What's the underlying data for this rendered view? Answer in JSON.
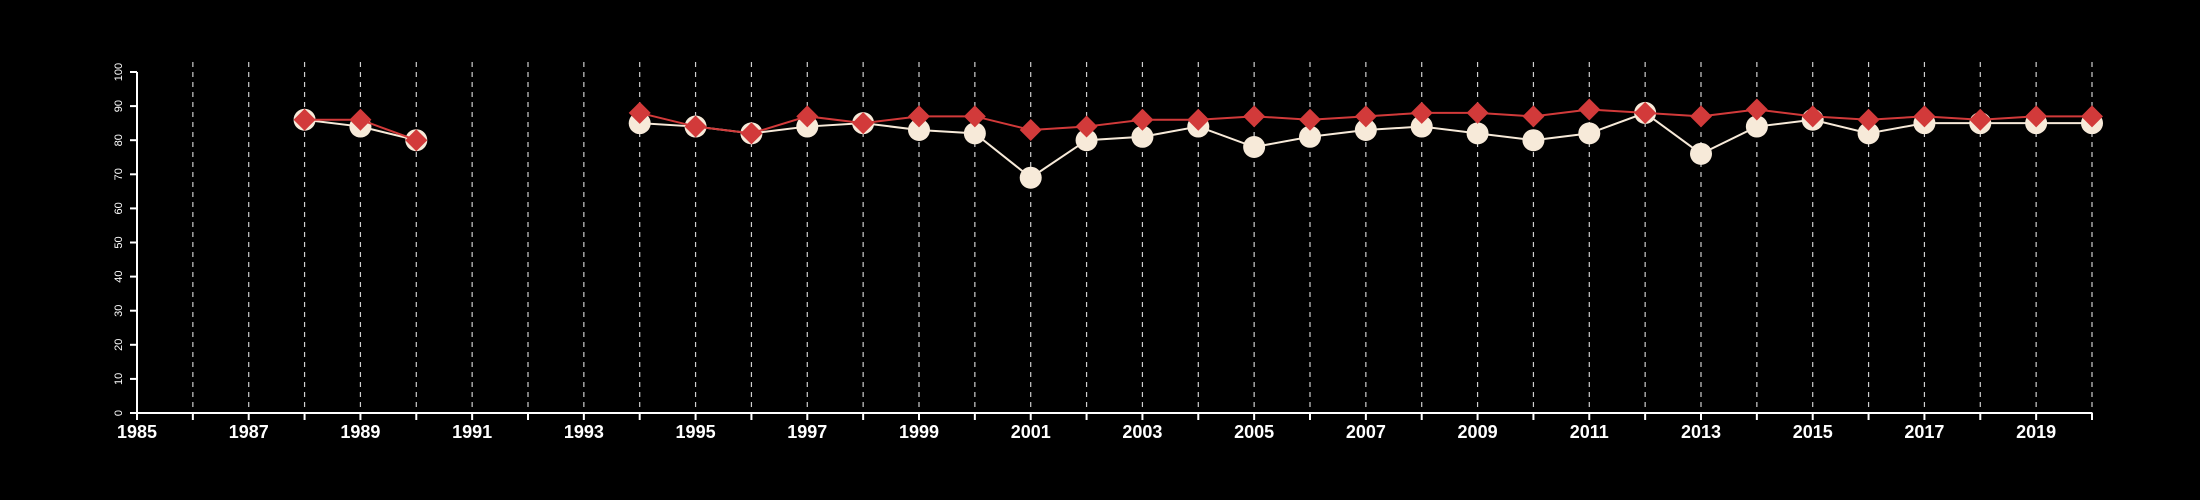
{
  "colors": {
    "background": "#000000",
    "axis": "#ffffff",
    "grid": "#cfcfcf",
    "series_a": "#f7ead9",
    "series_b": "#d23a3a"
  },
  "chart_data": {
    "type": "line",
    "title": "",
    "xlabel": "",
    "ylabel": "",
    "xlim": [
      1985,
      2020
    ],
    "ylim": [
      0,
      100
    ],
    "x_ticks_labeled": [
      1985,
      1987,
      1989,
      1991,
      1993,
      1995,
      1997,
      1999,
      2001,
      2003,
      2005,
      2007,
      2009,
      2011,
      2013,
      2015,
      2017,
      2019
    ],
    "y_ticks": [
      0,
      10,
      20,
      30,
      40,
      50,
      60,
      70,
      80,
      90,
      100
    ],
    "grid": "vertical dashed lines at each year",
    "legend": "none",
    "series": [
      {
        "marker": "circle",
        "color": "#f7ead9",
        "points": [
          {
            "x": 1988,
            "y": 86
          },
          {
            "x": 1989,
            "y": 84
          },
          {
            "x": 1990,
            "y": 80
          },
          {
            "x": 1991,
            "y": null
          },
          {
            "x": 1992,
            "y": null
          },
          {
            "x": 1993,
            "y": null
          },
          {
            "x": 1994,
            "y": 85
          },
          {
            "x": 1995,
            "y": 84
          },
          {
            "x": 1996,
            "y": 82
          },
          {
            "x": 1997,
            "y": 84
          },
          {
            "x": 1998,
            "y": 85
          },
          {
            "x": 1999,
            "y": 83
          },
          {
            "x": 2000,
            "y": 82
          },
          {
            "x": 2001,
            "y": 69
          },
          {
            "x": 2002,
            "y": 80
          },
          {
            "x": 2003,
            "y": 81
          },
          {
            "x": 2004,
            "y": 84
          },
          {
            "x": 2005,
            "y": 78
          },
          {
            "x": 2006,
            "y": 81
          },
          {
            "x": 2007,
            "y": 83
          },
          {
            "x": 2008,
            "y": 84
          },
          {
            "x": 2009,
            "y": 82
          },
          {
            "x": 2010,
            "y": 80
          },
          {
            "x": 2011,
            "y": 82
          },
          {
            "x": 2012,
            "y": 88
          },
          {
            "x": 2013,
            "y": 76
          },
          {
            "x": 2014,
            "y": 84
          },
          {
            "x": 2015,
            "y": 86
          },
          {
            "x": 2016,
            "y": 82
          },
          {
            "x": 2017,
            "y": 85
          },
          {
            "x": 2018,
            "y": 85
          },
          {
            "x": 2019,
            "y": 85
          },
          {
            "x": 2020,
            "y": 85
          }
        ]
      },
      {
        "marker": "diamond",
        "color": "#d23a3a",
        "points": [
          {
            "x": 1988,
            "y": 86
          },
          {
            "x": 1989,
            "y": 86
          },
          {
            "x": 1990,
            "y": 80
          },
          {
            "x": 1991,
            "y": null
          },
          {
            "x": 1992,
            "y": null
          },
          {
            "x": 1993,
            "y": null
          },
          {
            "x": 1994,
            "y": 88
          },
          {
            "x": 1995,
            "y": 84
          },
          {
            "x": 1996,
            "y": 82
          },
          {
            "x": 1997,
            "y": 87
          },
          {
            "x": 1998,
            "y": 85
          },
          {
            "x": 1999,
            "y": 87
          },
          {
            "x": 2000,
            "y": 87
          },
          {
            "x": 2001,
            "y": 83
          },
          {
            "x": 2002,
            "y": 84
          },
          {
            "x": 2003,
            "y": 86
          },
          {
            "x": 2004,
            "y": 86
          },
          {
            "x": 2005,
            "y": 87
          },
          {
            "x": 2006,
            "y": 86
          },
          {
            "x": 2007,
            "y": 87
          },
          {
            "x": 2008,
            "y": 88
          },
          {
            "x": 2009,
            "y": 88
          },
          {
            "x": 2010,
            "y": 87
          },
          {
            "x": 2011,
            "y": 89
          },
          {
            "x": 2012,
            "y": 88
          },
          {
            "x": 2013,
            "y": 87
          },
          {
            "x": 2014,
            "y": 89
          },
          {
            "x": 2015,
            "y": 87
          },
          {
            "x": 2016,
            "y": 86
          },
          {
            "x": 2017,
            "y": 87
          },
          {
            "x": 2018,
            "y": 86
          },
          {
            "x": 2019,
            "y": 87
          },
          {
            "x": 2020,
            "y": 87
          }
        ]
      }
    ]
  }
}
